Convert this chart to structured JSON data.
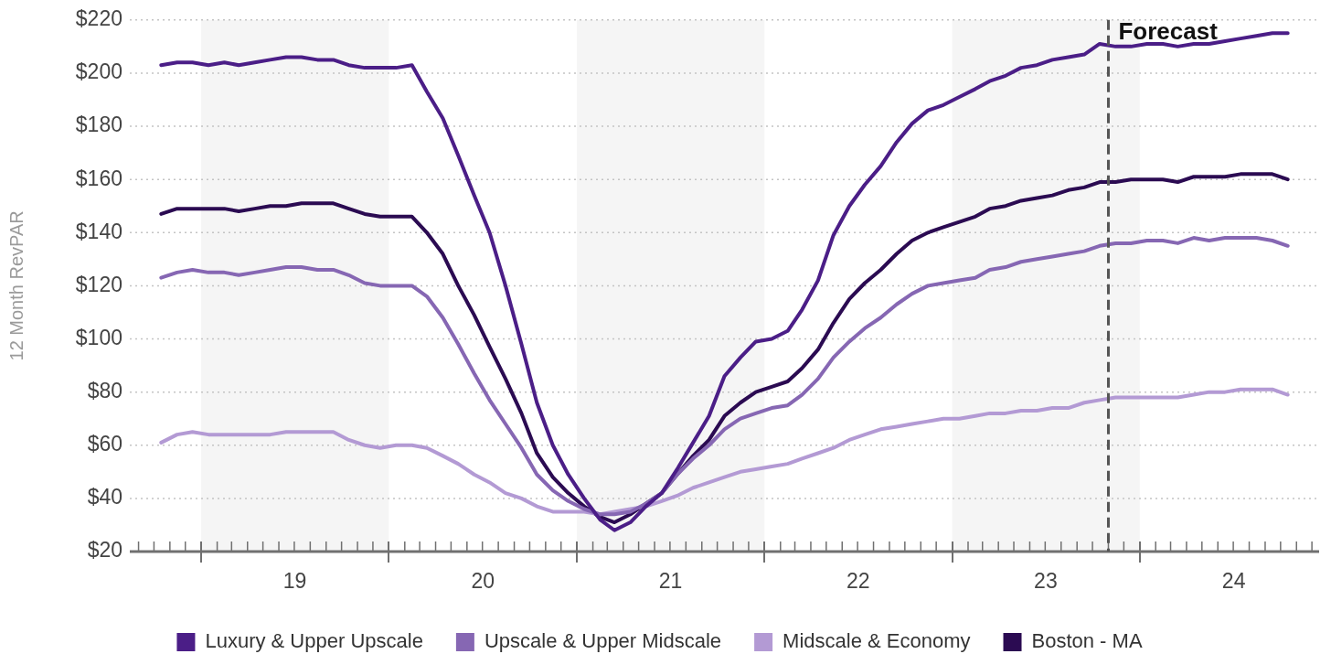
{
  "chart_data": {
    "type": "line",
    "ylabel": "12 Month RevPAR",
    "x": [
      "2018-10-15",
      "2018-11-15",
      "2018-12-15",
      "2019-01-15",
      "2019-02-15",
      "2019-03-15",
      "2019-04-15",
      "2019-05-15",
      "2019-06-15",
      "2019-07-15",
      "2019-08-15",
      "2019-09-15",
      "2019-10-15",
      "2019-11-15",
      "2019-12-15",
      "2020-01-15",
      "2020-02-15",
      "2020-03-15",
      "2020-04-15",
      "2020-05-15",
      "2020-06-15",
      "2020-07-15",
      "2020-08-15",
      "2020-09-15",
      "2020-10-15",
      "2020-11-15",
      "2020-12-15",
      "2021-01-15",
      "2021-02-15",
      "2021-03-15",
      "2021-04-15",
      "2021-05-15",
      "2021-06-15",
      "2021-07-15",
      "2021-08-15",
      "2021-09-15",
      "2021-10-15",
      "2021-11-15",
      "2021-12-15",
      "2022-01-15",
      "2022-02-15",
      "2022-03-15",
      "2022-04-15",
      "2022-05-15",
      "2022-06-15",
      "2022-07-15",
      "2022-08-15",
      "2022-09-15",
      "2022-10-15",
      "2022-11-15",
      "2022-12-15",
      "2023-01-15",
      "2023-02-15",
      "2023-03-15",
      "2023-04-15",
      "2023-05-15",
      "2023-06-15",
      "2023-07-15",
      "2023-08-15",
      "2023-09-15",
      "2023-10-15",
      "2023-11-15",
      "2023-12-15",
      "2024-01-15",
      "2024-02-15",
      "2024-03-15",
      "2024-04-15",
      "2024-05-15",
      "2024-06-15",
      "2024-07-15",
      "2024-08-15",
      "2024-09-15",
      "2024-10-15"
    ],
    "series": [
      {
        "name": "Luxury & Upper Upscale",
        "color": "#4b1e87",
        "values": [
          203,
          204,
          204,
          203,
          204,
          203,
          204,
          205,
          206,
          206,
          205,
          205,
          203,
          202,
          202,
          202,
          203,
          193,
          183,
          169,
          154,
          140,
          120,
          98,
          76,
          60,
          49,
          40,
          32,
          28,
          31,
          37,
          42,
          51,
          61,
          71,
          86,
          93,
          99,
          100,
          103,
          111,
          122,
          139,
          150,
          158,
          165,
          174,
          181,
          186,
          188,
          191,
          194,
          197,
          199,
          202,
          203,
          205,
          206,
          207,
          211,
          210,
          210,
          211,
          211,
          210,
          211,
          211,
          212,
          213,
          214,
          215,
          215
        ]
      },
      {
        "name": "Upscale & Upper Midscale",
        "color": "#8667b3",
        "values": [
          123,
          125,
          126,
          125,
          125,
          124,
          125,
          126,
          127,
          127,
          126,
          126,
          124,
          121,
          120,
          120,
          120,
          116,
          108,
          98,
          87,
          77,
          68,
          59,
          49,
          43,
          39,
          36,
          34,
          34,
          35,
          38,
          42,
          49,
          55,
          60,
          66,
          70,
          72,
          74,
          75,
          79,
          85,
          93,
          99,
          104,
          108,
          113,
          117,
          120,
          121,
          122,
          123,
          126,
          127,
          129,
          130,
          131,
          132,
          133,
          135,
          136,
          136,
          137,
          137,
          136,
          138,
          137,
          138,
          138,
          138,
          137,
          135
        ]
      },
      {
        "name": "Midscale & Economy",
        "color": "#b39ad4",
        "values": [
          61,
          64,
          65,
          64,
          64,
          64,
          64,
          64,
          65,
          65,
          65,
          65,
          62,
          60,
          59,
          60,
          60,
          59,
          56,
          53,
          49,
          46,
          42,
          40,
          37,
          35,
          35,
          35,
          34,
          35,
          36,
          37,
          39,
          41,
          44,
          46,
          48,
          50,
          51,
          52,
          53,
          55,
          57,
          59,
          62,
          64,
          66,
          67,
          68,
          69,
          70,
          70,
          71,
          72,
          72,
          73,
          73,
          74,
          74,
          76,
          77,
          78,
          78,
          78,
          78,
          78,
          79,
          80,
          80,
          81,
          81,
          81,
          79
        ]
      },
      {
        "name": "Boston - MA",
        "color": "#2b0b52",
        "values": [
          147,
          149,
          149,
          149,
          149,
          148,
          149,
          150,
          150,
          151,
          151,
          151,
          149,
          147,
          146,
          146,
          146,
          140,
          132,
          120,
          109,
          97,
          85,
          72,
          57,
          48,
          42,
          37,
          33,
          31,
          34,
          38,
          42,
          49,
          56,
          62,
          71,
          76,
          80,
          82,
          84,
          89,
          96,
          106,
          115,
          121,
          126,
          132,
          137,
          140,
          142,
          144,
          146,
          149,
          150,
          152,
          153,
          154,
          156,
          157,
          159,
          159,
          160,
          160,
          160,
          159,
          161,
          161,
          161,
          162,
          162,
          162,
          160
        ]
      }
    ],
    "xlim": [
      "2018-08-15",
      "2024-12-15"
    ],
    "xticks": [
      {
        "value": "2018-09-01",
        "label": null
      },
      {
        "value": "2018-10-01",
        "label": null
      },
      {
        "value": "2018-11-01",
        "label": null
      },
      {
        "value": "2018-12-01",
        "label": null
      },
      {
        "value": "2019-01-01",
        "label": null
      },
      {
        "value": "2019-02-01",
        "label": null
      },
      {
        "value": "2019-03-01",
        "label": null
      },
      {
        "value": "2019-04-01",
        "label": null
      },
      {
        "value": "2019-05-01",
        "label": null
      },
      {
        "value": "2019-06-01",
        "label": null
      },
      {
        "value": "2019-07-01",
        "label": null
      },
      {
        "value": "2019-07-02",
        "label": "19"
      },
      {
        "value": "2019-08-01",
        "label": null
      },
      {
        "value": "2019-09-01",
        "label": null
      },
      {
        "value": "2019-10-01",
        "label": null
      },
      {
        "value": "2019-11-01",
        "label": null
      },
      {
        "value": "2019-12-01",
        "label": null
      },
      {
        "value": "2020-01-01",
        "label": null
      },
      {
        "value": "2020-02-01",
        "label": null
      },
      {
        "value": "2020-03-01",
        "label": null
      },
      {
        "value": "2020-04-01",
        "label": null
      },
      {
        "value": "2020-05-01",
        "label": null
      },
      {
        "value": "2020-06-01",
        "label": null
      },
      {
        "value": "2020-07-01",
        "label": null
      },
      {
        "value": "2020-07-02",
        "label": "20"
      },
      {
        "value": "2020-08-01",
        "label": null
      },
      {
        "value": "2020-09-01",
        "label": null
      },
      {
        "value": "2020-10-01",
        "label": null
      },
      {
        "value": "2020-11-01",
        "label": null
      },
      {
        "value": "2020-12-01",
        "label": null
      },
      {
        "value": "2021-01-01",
        "label": null
      },
      {
        "value": "2021-02-01",
        "label": null
      },
      {
        "value": "2021-03-01",
        "label": null
      },
      {
        "value": "2021-04-01",
        "label": null
      },
      {
        "value": "2021-05-01",
        "label": null
      },
      {
        "value": "2021-06-01",
        "label": null
      },
      {
        "value": "2021-07-01",
        "label": null
      },
      {
        "value": "2021-07-02",
        "label": "21"
      },
      {
        "value": "2021-08-01",
        "label": null
      },
      {
        "value": "2021-09-01",
        "label": null
      },
      {
        "value": "2021-10-01",
        "label": null
      },
      {
        "value": "2021-11-01",
        "label": null
      },
      {
        "value": "2021-12-01",
        "label": null
      },
      {
        "value": "2022-01-01",
        "label": null
      },
      {
        "value": "2022-02-01",
        "label": null
      },
      {
        "value": "2022-03-01",
        "label": null
      },
      {
        "value": "2022-04-01",
        "label": null
      },
      {
        "value": "2022-05-01",
        "label": null
      },
      {
        "value": "2022-06-01",
        "label": null
      },
      {
        "value": "2022-07-01",
        "label": null
      },
      {
        "value": "2022-07-02",
        "label": "22"
      },
      {
        "value": "2022-08-01",
        "label": null
      },
      {
        "value": "2022-09-01",
        "label": null
      },
      {
        "value": "2022-10-01",
        "label": null
      },
      {
        "value": "2022-11-01",
        "label": null
      },
      {
        "value": "2022-12-01",
        "label": null
      },
      {
        "value": "2023-01-01",
        "label": null
      },
      {
        "value": "2023-02-01",
        "label": null
      },
      {
        "value": "2023-03-01",
        "label": null
      },
      {
        "value": "2023-04-01",
        "label": null
      },
      {
        "value": "2023-05-01",
        "label": null
      },
      {
        "value": "2023-06-01",
        "label": null
      },
      {
        "value": "2023-07-01",
        "label": null
      },
      {
        "value": "2023-07-02",
        "label": "23"
      },
      {
        "value": "2023-08-01",
        "label": null
      },
      {
        "value": "2023-09-01",
        "label": null
      },
      {
        "value": "2023-10-01",
        "label": null
      },
      {
        "value": "2023-11-01",
        "label": null
      },
      {
        "value": "2023-12-01",
        "label": null
      },
      {
        "value": "2024-01-01",
        "label": null
      },
      {
        "value": "2024-02-01",
        "label": null
      },
      {
        "value": "2024-03-01",
        "label": null
      },
      {
        "value": "2024-04-01",
        "label": null
      },
      {
        "value": "2024-05-01",
        "label": null
      },
      {
        "value": "2024-06-01",
        "label": null
      },
      {
        "value": "2024-07-01",
        "label": null
      },
      {
        "value": "2024-07-02",
        "label": "24"
      },
      {
        "value": "2024-08-01",
        "label": null
      },
      {
        "value": "2024-09-01",
        "label": null
      },
      {
        "value": "2024-10-01",
        "label": null
      },
      {
        "value": "2024-11-01",
        "label": null
      },
      {
        "value": "2024-12-01",
        "label": null
      }
    ],
    "ylim": [
      20,
      220
    ],
    "yticks": [
      {
        "value": 20,
        "label": "$20"
      },
      {
        "value": 40,
        "label": "$40"
      },
      {
        "value": 60,
        "label": "$60"
      },
      {
        "value": 80,
        "label": "$80"
      },
      {
        "value": 100,
        "label": "$100"
      },
      {
        "value": 120,
        "label": "$120"
      },
      {
        "value": 140,
        "label": "$140"
      },
      {
        "value": 160,
        "label": "$160"
      },
      {
        "value": 180,
        "label": "$180"
      },
      {
        "value": 200,
        "label": "$200"
      },
      {
        "value": 220,
        "label": "$220"
      }
    ],
    "grid": "y",
    "legend": "bottom",
    "bands": [
      {
        "axis": "x",
        "from": "2019-01-01",
        "to": "2020-01-01",
        "color": "#f5f5f5"
      },
      {
        "axis": "x",
        "from": "2021-01-01",
        "to": "2022-01-01",
        "color": "#f5f5f5"
      },
      {
        "axis": "x",
        "from": "2023-01-01",
        "to": "2024-01-01",
        "color": "#f5f5f5"
      }
    ],
    "ref_lines": [
      {
        "axis": "x",
        "value": "2023-11-01",
        "label": "Forecast",
        "color": "#555555",
        "line_style": "dashed"
      }
    ]
  }
}
